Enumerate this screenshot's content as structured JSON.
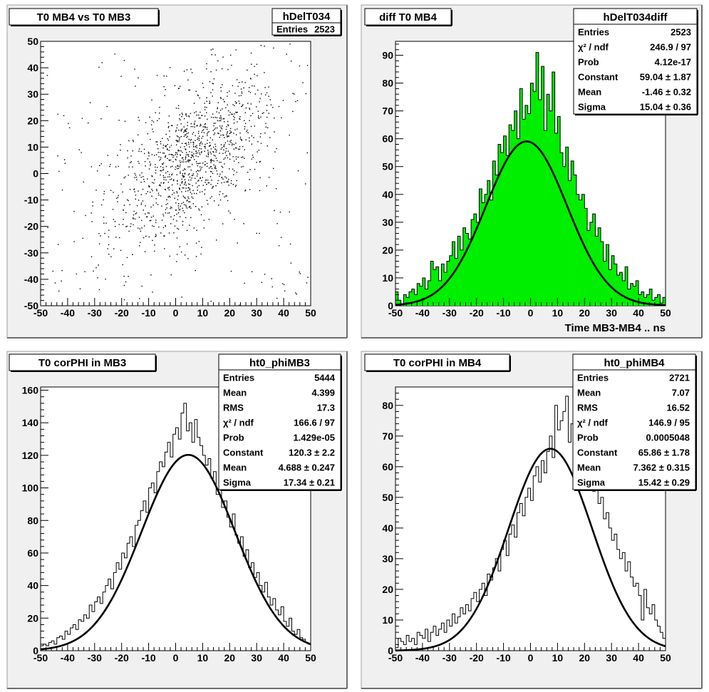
{
  "chart_data": [
    {
      "type": "scatter",
      "title": "T0 MB4 vs T0 MB3",
      "xlabel": "",
      "ylabel": "",
      "xlim": [
        -50,
        50
      ],
      "ylim": [
        -50,
        50
      ],
      "xticks": [
        "-50",
        "-40",
        "-30",
        "-20",
        "-10",
        "0",
        "10",
        "20",
        "30",
        "40",
        "50"
      ],
      "yticks": [
        "-50",
        "-40",
        "-30",
        "-20",
        "-10",
        "0",
        "10",
        "20",
        "30",
        "40",
        "50"
      ],
      "stats": {
        "name": "hDelT034",
        "rows": [
          {
            "label": "Entries",
            "value": "2523"
          }
        ]
      },
      "points_note": "2523 entries, correlated cloud centered near (5, 5), spread about 15 ns"
    },
    {
      "type": "bar",
      "title": "diff T0 MB4",
      "xlabel": "Time MB3-MB4  ..  ns",
      "ylabel": "",
      "xlim": [
        -50,
        50
      ],
      "ylim": [
        0,
        95
      ],
      "xticks": [
        "-50",
        "-40",
        "-30",
        "-20",
        "-10",
        "0",
        "10",
        "20",
        "30",
        "40",
        "50"
      ],
      "yticks": [
        "0",
        "10",
        "20",
        "30",
        "40",
        "50",
        "60",
        "70",
        "80",
        "90"
      ],
      "fill": "#00ee00",
      "bin_edges_start": -50,
      "bin_width": 1,
      "values": [
        5,
        2,
        0,
        4,
        3,
        5,
        6,
        4,
        8,
        7,
        10,
        6,
        9,
        16,
        13,
        14,
        9,
        15,
        12,
        16,
        18,
        23,
        17,
        25,
        20,
        28,
        26,
        24,
        31,
        33,
        30,
        42,
        37,
        40,
        45,
        38,
        52,
        47,
        58,
        55,
        61,
        54,
        65,
        63,
        70,
        60,
        78,
        67,
        72,
        69,
        80,
        77,
        91,
        74,
        86,
        63,
        76,
        70,
        84,
        62,
        68,
        55,
        50,
        57,
        45,
        52,
        47,
        40,
        38,
        40,
        35,
        27,
        30,
        33,
        25,
        28,
        23,
        16,
        22,
        13,
        18,
        15,
        11,
        12,
        9,
        14,
        6,
        8,
        7,
        9,
        4,
        5,
        3,
        4,
        6,
        2,
        3,
        4,
        1,
        3
      ],
      "fit": {
        "constant": 59.04,
        "mean": -1.46,
        "sigma": 15.04
      },
      "stats": {
        "name": "hDelT034diff",
        "rows": [
          {
            "label": "Entries",
            "value": "2523"
          },
          {
            "label": "χ² / ndf",
            "value": "246.9 / 97"
          },
          {
            "label": "Prob",
            "value": "4.12e-17"
          },
          {
            "label": "Constant",
            "value": "59.04 ± 1.87"
          },
          {
            "label": "Mean",
            "value": "-1.46 ± 0.32"
          },
          {
            "label": "Sigma",
            "value": "15.04 ± 0.36"
          }
        ]
      }
    },
    {
      "type": "line",
      "title": "T0 corPHI in MB3",
      "xlabel": "",
      "ylabel": "",
      "xlim": [
        -50,
        50
      ],
      "ylim": [
        0,
        162
      ],
      "xticks": [
        "-50",
        "-40",
        "-30",
        "-20",
        "-10",
        "0",
        "10",
        "20",
        "30",
        "40",
        "50"
      ],
      "yticks": [
        "0",
        "20",
        "40",
        "60",
        "80",
        "100",
        "120",
        "140",
        "160"
      ],
      "bin_edges_start": -50,
      "bin_width": 1,
      "values": [
        3,
        4,
        3,
        5,
        6,
        4,
        8,
        9,
        7,
        12,
        10,
        14,
        16,
        13,
        19,
        18,
        22,
        20,
        28,
        24,
        30,
        33,
        29,
        36,
        40,
        44,
        38,
        48,
        54,
        50,
        60,
        57,
        66,
        70,
        64,
        77,
        80,
        86,
        92,
        85,
        100,
        103,
        97,
        110,
        116,
        113,
        122,
        128,
        119,
        133,
        137,
        130,
        146,
        152,
        135,
        140,
        128,
        142,
        131,
        126,
        120,
        114,
        118,
        106,
        110,
        96,
        100,
        88,
        92,
        82,
        76,
        84,
        71,
        66,
        70,
        58,
        62,
        51,
        54,
        45,
        48,
        40,
        36,
        42,
        33,
        28,
        32,
        25,
        22,
        27,
        18,
        15,
        20,
        12,
        10,
        13,
        8,
        7,
        5,
        4
      ],
      "fit": {
        "constant": 120.3,
        "mean": 4.688,
        "sigma": 17.34
      },
      "stats": {
        "name": "ht0_phiMB3",
        "rows": [
          {
            "label": "Entries",
            "value": "5444"
          },
          {
            "label": "Mean",
            "value": "4.399"
          },
          {
            "label": "RMS",
            "value": "17.3"
          },
          {
            "label": "χ² / ndf",
            "value": "166.6 / 97"
          },
          {
            "label": "Prob",
            "value": "1.429e-05"
          },
          {
            "label": "Constant",
            "value": "120.3 ± 2.2"
          },
          {
            "label": "Mean",
            "value": "4.688 ± 0.247"
          },
          {
            "label": "Sigma",
            "value": "17.34 ± 0.21"
          }
        ]
      }
    },
    {
      "type": "line",
      "title": "T0 corPHI in MB4",
      "xlabel": "",
      "ylabel": "",
      "xlim": [
        -50,
        50
      ],
      "ylim": [
        0,
        86
      ],
      "xticks": [
        "-50",
        "-40",
        "-30",
        "-20",
        "-10",
        "0",
        "10",
        "20",
        "30",
        "40",
        "50"
      ],
      "yticks": [
        "0",
        "10",
        "20",
        "30",
        "40",
        "50",
        "60",
        "70",
        "80"
      ],
      "bin_edges_start": -50,
      "bin_width": 1,
      "values": [
        1,
        4,
        3,
        2,
        5,
        3,
        4,
        2,
        6,
        5,
        4,
        7,
        3,
        6,
        8,
        5,
        7,
        9,
        6,
        10,
        8,
        12,
        9,
        11,
        14,
        12,
        15,
        13,
        17,
        19,
        16,
        20,
        22,
        18,
        25,
        23,
        27,
        30,
        26,
        33,
        36,
        31,
        38,
        41,
        37,
        45,
        48,
        44,
        50,
        53,
        49,
        57,
        60,
        55,
        62,
        58,
        65,
        70,
        63,
        80,
        72,
        75,
        78,
        83,
        68,
        74,
        70,
        66,
        72,
        64,
        60,
        63,
        56,
        52,
        55,
        48,
        50,
        43,
        45,
        40,
        36,
        38,
        33,
        30,
        32,
        26,
        29,
        24,
        21,
        22,
        18,
        10,
        20,
        14,
        12,
        15,
        10,
        8,
        6,
        4
      ],
      "fit": {
        "constant": 65.86,
        "mean": 7.362,
        "sigma": 15.42
      },
      "stats": {
        "name": "ht0_phiMB4",
        "rows": [
          {
            "label": "Entries",
            "value": "2721"
          },
          {
            "label": "Mean",
            "value": "7.07"
          },
          {
            "label": "RMS",
            "value": "16.52"
          },
          {
            "label": "χ² / ndf",
            "value": "146.9 / 95"
          },
          {
            "label": "Prob",
            "value": "0.0005048"
          },
          {
            "label": "Constant",
            "value": "65.86 ± 1.78"
          },
          {
            "label": "Mean",
            "value": "7.362 ± 0.315"
          },
          {
            "label": "Sigma",
            "value": "15.42 ± 0.29"
          }
        ]
      }
    }
  ]
}
